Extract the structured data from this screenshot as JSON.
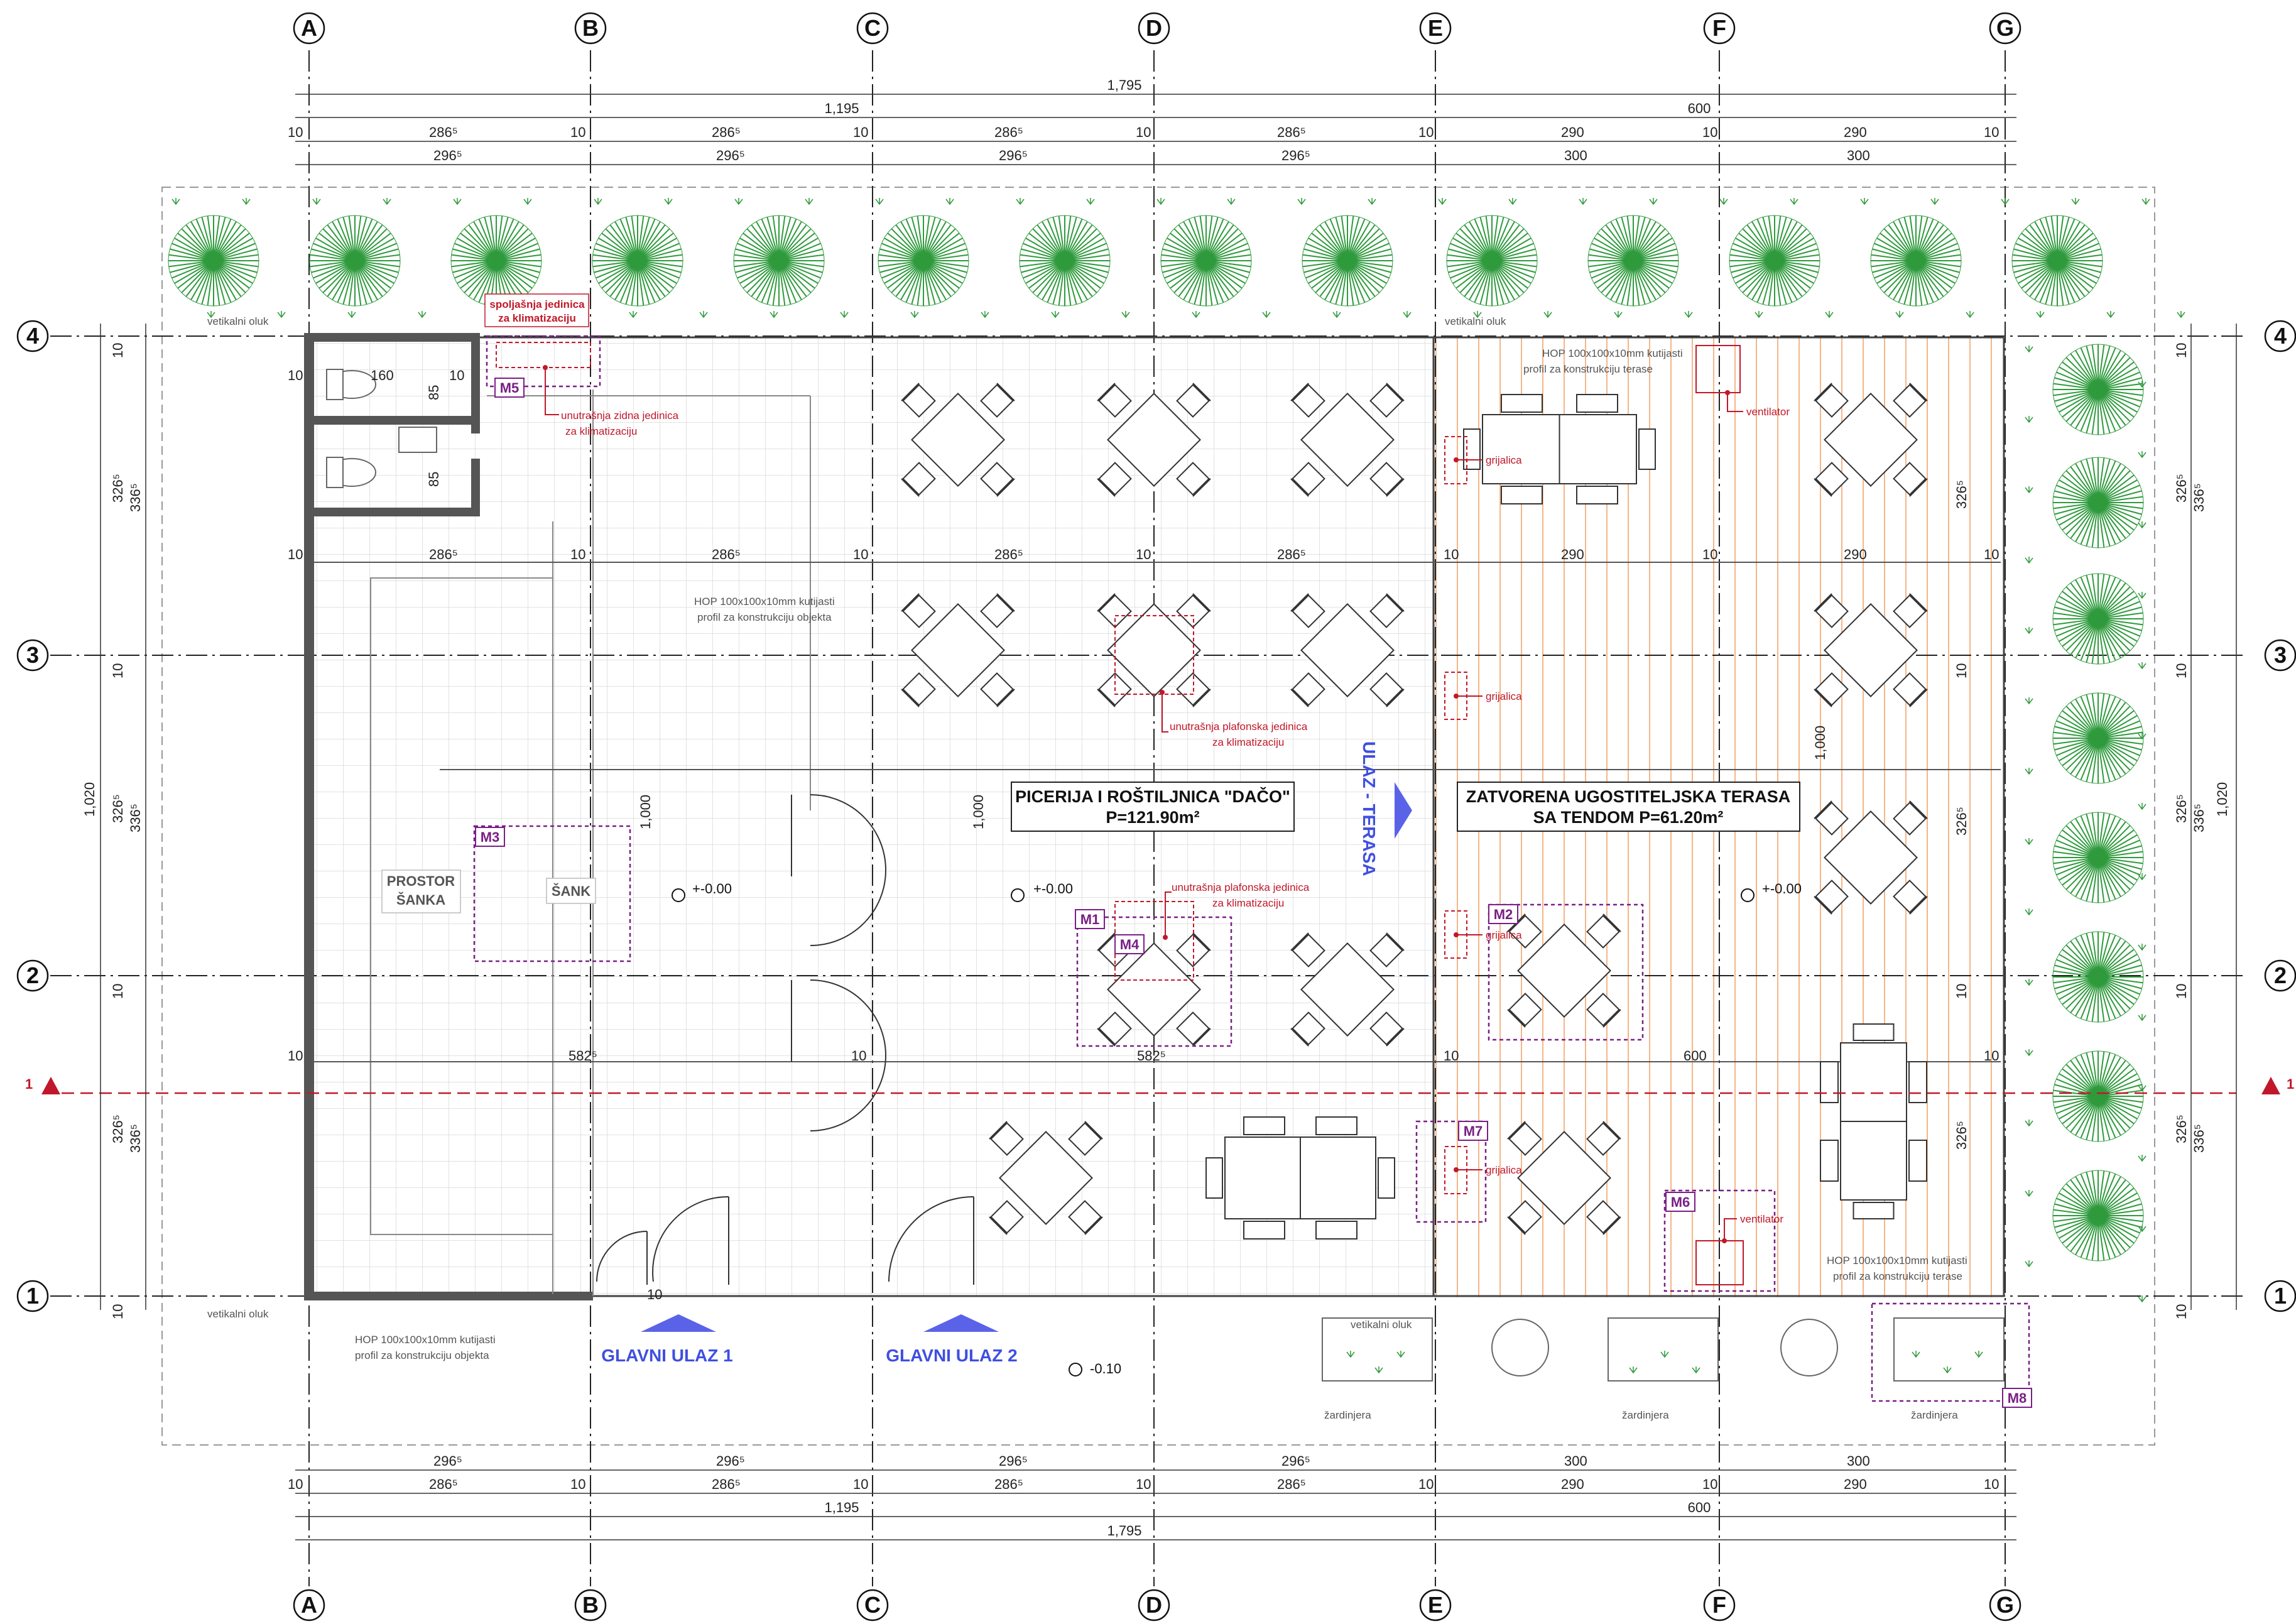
{
  "grid": {
    "columns": [
      "A",
      "B",
      "C",
      "D",
      "E",
      "F",
      "G"
    ],
    "rows": [
      "4",
      "3",
      "2",
      "1"
    ]
  },
  "dims": {
    "total": "1,795",
    "left_block": "1,195",
    "right_block": "600",
    "col_thk": "10",
    "inner_left": "286⁵",
    "inner_right": "290",
    "axis_left": "296⁵",
    "axis_right": "300",
    "height_total": "1,020",
    "bay_axis": "336⁵",
    "bay_inner": "326⁵",
    "span_1000": "1,000",
    "wc_width": "160",
    "wc_small": "85",
    "half_width": "582⁵",
    "terrace_width": "600"
  },
  "rooms": {
    "main_title": "PICERIJA I ROŠTILJNICA \"DAČO\"",
    "main_area": "P=121.90m²",
    "terrace_title": "ZATVORENA UGOSTITELJSKA TERASA",
    "terrace_area": "SA TENDOM P=61.20m²",
    "bar_area": "PROSTOR",
    "bar_area2": "ŠANKA",
    "bar": "ŠANK"
  },
  "entrances": {
    "main1": "GLAVNI ULAZ 1",
    "main2": "GLAVNI ULAZ 2",
    "terrace": "ULAZ - TERASA"
  },
  "levels": {
    "floor": "+-0.00",
    "outside": "-0.10"
  },
  "notes": {
    "gutter": "vetikalni oluk",
    "hop_object_1": "HOP 100x100x10mm kutijasti",
    "hop_object_2": "profil za konstrukciju objekta",
    "hop_terrace_1": "HOP 100x100x10mm kutijasti",
    "hop_terrace_2": "profil za konstrukciju terase",
    "ac_outdoor_1": "spoljašnja jedinica",
    "ac_outdoor_2": "za klimatizaciju",
    "ac_wall_1": "unutrašnja zidna jedinica",
    "ac_wall_2": "za klimatizaciju",
    "ac_ceiling_1": "unutrašnja plafonska jedinica",
    "ac_ceiling_2": "za klimatizaciju",
    "heater": "grijalica",
    "fan": "ventilator",
    "planter": "žardinjera"
  },
  "markers": [
    "M1",
    "M2",
    "M3",
    "M4",
    "M5",
    "M6",
    "M7",
    "M8"
  ],
  "section_marker": "1",
  "colors": {
    "tree": "#2e9a3c",
    "red": "#c0182a",
    "purple": "#7a1f86",
    "blue": "#3f4fe0",
    "terrace_hatch": "#f2a36b"
  }
}
